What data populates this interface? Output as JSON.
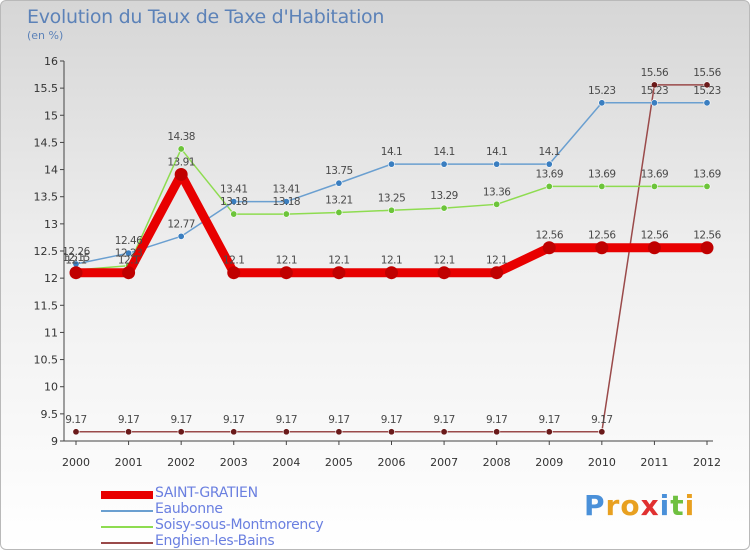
{
  "title": "Evolution du Taux de Taxe d'Habitation",
  "subtitle": "(en %)",
  "brand": {
    "letters": [
      "P",
      "r",
      "o",
      "x",
      "i",
      "t",
      "i"
    ],
    "colors": [
      "#4a90d9",
      "#e8a020",
      "#e8a020",
      "#e03030",
      "#4a90d9",
      "#6fc040",
      "#e8a020"
    ]
  },
  "chart_data": {
    "type": "line",
    "x": [
      "2000",
      "2001",
      "2002",
      "2003",
      "2004",
      "2005",
      "2006",
      "2007",
      "2008",
      "2009",
      "2010",
      "2011",
      "2012"
    ],
    "ylim": [
      9,
      16
    ],
    "yticks": [
      "9",
      "9.5",
      "10",
      "10.5",
      "11",
      "11.5",
      "12",
      "12.5",
      "13",
      "13.5",
      "14",
      "14.5",
      "15",
      "15.5",
      "16"
    ],
    "grid": false,
    "legend_position": "bottom-left",
    "series": [
      {
        "name": "SAINT-GRATIEN",
        "color": "#e80000",
        "values": [
          12.1,
          12.1,
          13.91,
          12.1,
          12.1,
          12.1,
          12.1,
          12.1,
          12.1,
          12.56,
          12.56,
          12.56,
          12.56
        ],
        "labels": [
          "12.1",
          "12.1",
          "13.91",
          "12.1",
          "12.1",
          "12.1",
          "12.1",
          "12.1",
          "12.1",
          "12.56",
          "12.56",
          "12.56",
          "12.56"
        ]
      },
      {
        "name": "Eaubonne",
        "color": "#6a9fd0",
        "values": [
          12.26,
          12.46,
          12.77,
          13.41,
          13.41,
          13.75,
          14.1,
          14.1,
          14.1,
          14.1,
          15.23,
          15.23,
          15.23
        ],
        "labels": [
          "12.26",
          "12.46",
          "12.77",
          "13.41",
          "13.41",
          "13.75",
          "14.1",
          "14.1",
          "14.1",
          "14.1",
          "15.23",
          "15.23",
          "15.23"
        ]
      },
      {
        "name": "Soisy-sous-Montmorency",
        "color": "#8edc50",
        "values": [
          12.15,
          12.23,
          14.38,
          13.18,
          13.18,
          13.21,
          13.25,
          13.29,
          13.36,
          13.69,
          13.69,
          13.69,
          13.69
        ],
        "labels": [
          "12.15",
          "12.23",
          "14.38",
          "13.18",
          "13.18",
          "13.21",
          "13.25",
          "13.29",
          "13.36",
          "13.69",
          "13.69",
          "13.69",
          "13.69"
        ]
      },
      {
        "name": "Enghien-les-Bains",
        "color": "#9a4a4a",
        "values": [
          9.17,
          9.17,
          9.17,
          9.17,
          9.17,
          9.17,
          9.17,
          9.17,
          9.17,
          9.17,
          9.17,
          15.56,
          15.56
        ],
        "labels": [
          "9.17",
          "9.17",
          "9.17",
          "9.17",
          "9.17",
          "9.17",
          "9.17",
          "9.17",
          "9.17",
          "9.17",
          "9.17",
          "15.56",
          "15.56"
        ]
      }
    ]
  }
}
